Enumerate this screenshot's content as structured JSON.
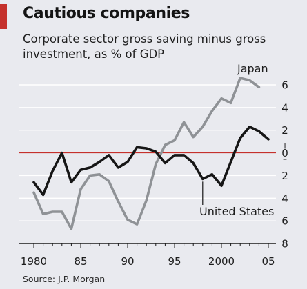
{
  "figure": {
    "title": "Cautious companies",
    "subtitle": "Corporate sector gross saving minus gross investment, as % of GDP",
    "source": "Source: J.P. Morgan"
  },
  "colors": {
    "background": "#e9eaef",
    "accent": "#c5312c",
    "zero_line": "#c5312c",
    "grid": "#ffffff",
    "japan": "#8f9296",
    "united_states": "#161616"
  },
  "chart_data": {
    "type": "line",
    "title": "Cautious companies",
    "subtitle": "Corporate sector gross saving minus gross investment, as % of GDP",
    "xlim": [
      1979,
      2006
    ],
    "ylim": [
      -8,
      7
    ],
    "x_ticks": [
      1980,
      1985,
      1990,
      1995,
      2000,
      2005
    ],
    "x_tick_labels": [
      "1980",
      "85",
      "90",
      "95",
      "2000",
      "05"
    ],
    "y_ticks": [
      6,
      4,
      2,
      0,
      -2,
      -4,
      -6,
      -8
    ],
    "y_tick_labels": [
      "6",
      "4",
      "2",
      "0",
      "2",
      "4",
      "6",
      "8"
    ],
    "y_sign_labels": [
      "+",
      "–"
    ],
    "grid": true,
    "zero_line": true,
    "series": [
      {
        "name": "Japan",
        "color": "#8f9296",
        "x": [
          1980,
          1981,
          1982,
          1983,
          1984,
          1985,
          1986,
          1987,
          1988,
          1989,
          1990,
          1991,
          1992,
          1993,
          1994,
          1995,
          1996,
          1997,
          1998,
          1999,
          2000,
          2001,
          2002,
          2003,
          2004
        ],
        "values": [
          -3.5,
          -5.4,
          -5.2,
          -5.2,
          -6.7,
          -3.2,
          -2.0,
          -1.9,
          -2.5,
          -4.3,
          -5.9,
          -6.3,
          -4.2,
          -1.0,
          0.7,
          1.1,
          2.7,
          1.4,
          2.3,
          3.7,
          4.8,
          4.4,
          6.6,
          6.4,
          5.8
        ]
      },
      {
        "name": "United States",
        "color": "#161616",
        "x": [
          1980,
          1981,
          1982,
          1983,
          1984,
          1985,
          1986,
          1987,
          1988,
          1989,
          1990,
          1991,
          1992,
          1993,
          1994,
          1995,
          1996,
          1997,
          1998,
          1999,
          2000,
          2001,
          2002,
          2003,
          2004,
          2005
        ],
        "values": [
          -2.6,
          -3.7,
          -1.6,
          0.0,
          -2.6,
          -1.5,
          -1.3,
          -0.8,
          -0.2,
          -1.3,
          -0.8,
          0.5,
          0.4,
          0.1,
          -0.9,
          -0.2,
          -0.2,
          -0.9,
          -2.3,
          -1.9,
          -2.9,
          -0.8,
          1.3,
          2.3,
          1.9,
          1.2
        ]
      }
    ]
  }
}
